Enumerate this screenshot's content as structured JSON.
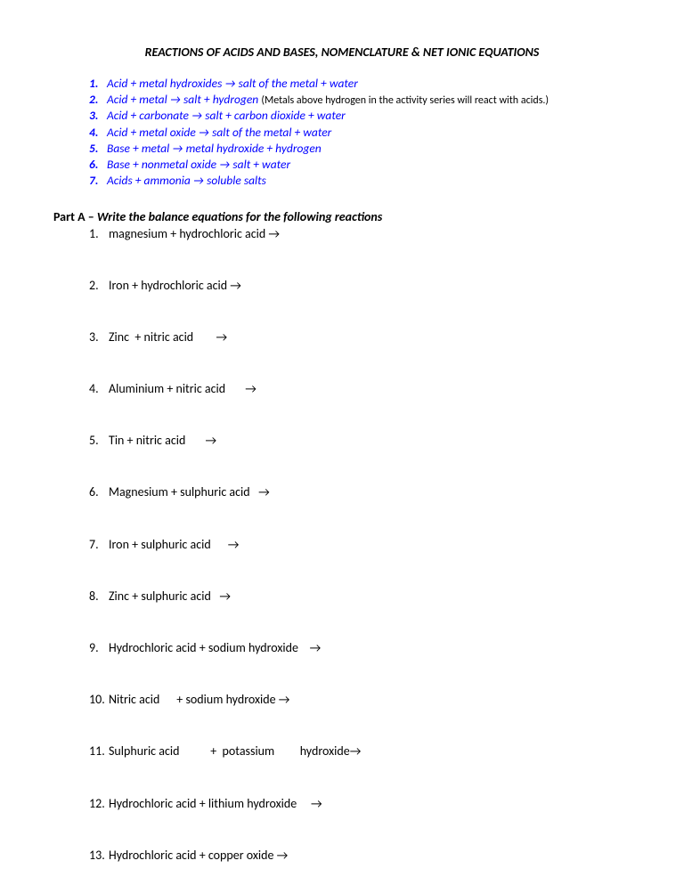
{
  "title": "REACTIONS OF ACIDS AND BASES, NOMENCLATURE & NET IONIC EQUATIONS",
  "rules": [
    {
      "num": "1.",
      "text": "Acid + metal hydroxides → salt of the metal + water",
      "note": ""
    },
    {
      "num": "2.",
      "text": "Acid + metal → salt + hydrogen ",
      "note": "(Metals above hydrogen in the activity series will react with acids.)"
    },
    {
      "num": "3.",
      "text": "Acid + carbonate → salt + carbon dioxide + water",
      "note": ""
    },
    {
      "num": "4.",
      "text": "Acid + metal oxide → salt of the metal + water",
      "note": ""
    },
    {
      "num": "5.",
      "text": "Base + metal → metal hydroxide + hydrogen",
      "note": ""
    },
    {
      "num": "6.",
      "text": "Base + nonmetal oxide → salt + water",
      "note": ""
    },
    {
      "num": "7.",
      "text": "Acids + ammonia → soluble salts",
      "note": ""
    }
  ],
  "partA": {
    "label": "Part A – ",
    "instruction": "Write the balance equations for the following reactions"
  },
  "questions": [
    {
      "num": "1.",
      "text": "magnesium + hydrochloric acid →"
    },
    {
      "num": "2.",
      "text": "Iron + hydrochloric acid →"
    },
    {
      "num": "3.",
      "text": "Zinc  + nitric acid        →"
    },
    {
      "num": "4.",
      "text": "Aluminium + nitric acid       →"
    },
    {
      "num": "5.",
      "text": "Tin + nitric acid       →"
    },
    {
      "num": "6.",
      "text": "Magnesium + sulphuric acid   →"
    },
    {
      "num": "7.",
      "text": "Iron + sulphuric acid      →"
    },
    {
      "num": "8.",
      "text": "Zinc + sulphuric acid   →"
    },
    {
      "num": "9.",
      "text": "Hydrochloric acid + sodium hydroxide    →"
    },
    {
      "num": "10.",
      "text": "Nitric acid      + sodium hydroxide →"
    },
    {
      "num": "11.",
      "text": "Sulphuric acid           +  potassium         hydroxide→"
    },
    {
      "num": "12.",
      "text": "Hydrochloric acid + lithium hydroxide     →"
    },
    {
      "num": "13.",
      "text": "Hydrochloric acid + copper oxide →"
    }
  ]
}
